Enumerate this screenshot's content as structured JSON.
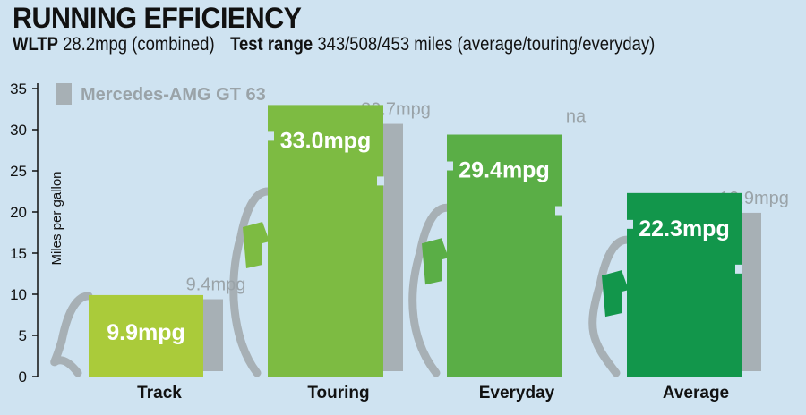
{
  "header": {
    "title": "RUNNING EFFICIENCY",
    "wltp_label": "WLTP",
    "wltp_value": "28.2mpg (combined)",
    "range_label": "Test range",
    "range_value": "343/508/453 miles (average/touring/everyday)"
  },
  "chart_data": {
    "type": "bar",
    "categories": [
      "Track",
      "Touring",
      "Everyday",
      "Average"
    ],
    "series": [
      {
        "name": "",
        "values": [
          9.9,
          33.0,
          29.4,
          22.3
        ],
        "labels": [
          "9.9mpg",
          "33.0mpg",
          "29.4mpg",
          "22.3mpg"
        ],
        "colors": [
          "#aacb3a",
          "#7dbb42",
          "#5aae46",
          "#12964b"
        ]
      },
      {
        "name": "Mercedes-AMG GT 63",
        "values": [
          9.4,
          30.7,
          null,
          19.9
        ],
        "labels": [
          "9.4mpg",
          "30.7mpg",
          "na",
          "19.9mpg"
        ],
        "color": "#a7b0b5"
      }
    ],
    "ylabel": "Miles per gallon",
    "ylim": [
      0,
      35
    ],
    "yticks": [
      0,
      5,
      10,
      15,
      20,
      25,
      30,
      35
    ],
    "legend_position": "top-left"
  }
}
